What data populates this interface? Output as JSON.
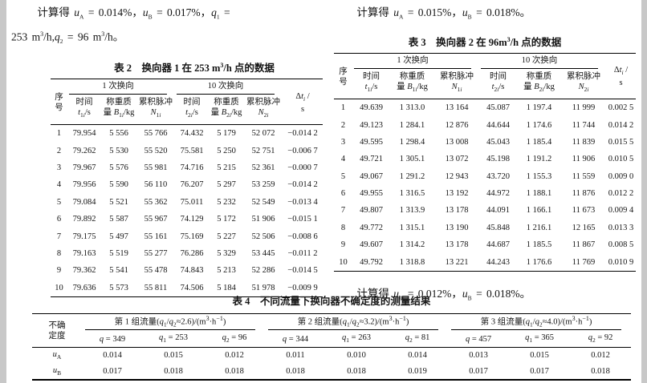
{
  "left_column": {
    "result_line1": "计算得 <i>u</i><sub>A</sub> = 0.014%，<i>u</i><sub>B</sub> = 0.017%，<i>q</i><sub>1</sub> =",
    "result_line2": "253 m<sup>3</sup>/h,<i>q</i><sub>2</sub> = 96 m<sup>3</sup>/h。"
  },
  "right_column": {
    "result_text_top": "计算得 <i>u</i><sub>A</sub> = 0.015%，<i>u</i><sub>B</sub> = 0.018%。",
    "result_text_bottom": "计算得 <i>u</i><sub>A</sub> = 0.012%，<i>u</i><sub>B</sub> = 0.018%。"
  },
  "commHeader": {
    "seq": "序<br>号",
    "group1": "1 次换向",
    "group2": "10 次换向",
    "time1": "时间<br><i>t</i><sub>1<i>i</i></sub>/s",
    "mass1": "称重质<br>量 <i>B</i><sub>1<i>i</i></sub>/kg",
    "pulse1": "累积脉冲<br><i>N</i><sub>1<i>i</i></sub>",
    "time2": "时间<br><i>t</i><sub>2<i>i</i></sub>/s",
    "mass2": "称重质<br>量 <i>B</i><sub>2<i>i</i></sub>/kg",
    "pulse2": "累积脉冲<br><i>N</i><sub>2<i>i</i></sub>",
    "dt": "Δ<i>t</i><sub><i>i</i></sub> /<br>s"
  },
  "table2": {
    "title": "表 2　换向器 1 在 253 m<sup>3</sup>/h 点的数据",
    "rows": [
      [
        "1",
        "79.954",
        "5 556",
        "55 766",
        "74.432",
        "5 179",
        "52 072",
        "−0.014 2"
      ],
      [
        "2",
        "79.262",
        "5 530",
        "55 520",
        "75.581",
        "5 250",
        "52 751",
        "−0.006 7"
      ],
      [
        "3",
        "79.967",
        "5 576",
        "55 981",
        "74.716",
        "5 215",
        "52 361",
        "−0.000 7"
      ],
      [
        "4",
        "79.956",
        "5 590",
        "56 110",
        "76.207",
        "5 297",
        "53 259",
        "−0.014 2"
      ],
      [
        "5",
        "79.084",
        "5 521",
        "55 362",
        "75.011",
        "5 232",
        "52 549",
        "−0.013 4"
      ],
      [
        "6",
        "79.892",
        "5 587",
        "55 967",
        "74.129",
        "5 172",
        "51 906",
        "−0.015 1"
      ],
      [
        "7",
        "79.175",
        "5 497",
        "55 161",
        "75.169",
        "5 227",
        "52 506",
        "−0.008 6"
      ],
      [
        "8",
        "79.163",
        "5 519",
        "55 277",
        "76.286",
        "5 329",
        "53 445",
        "−0.011 2"
      ],
      [
        "9",
        "79.362",
        "5 541",
        "55 478",
        "74.843",
        "5 213",
        "52 286",
        "−0.014 5"
      ],
      [
        "10",
        "79.636",
        "5 573",
        "55 811",
        "74.506",
        "5 184",
        "51 978",
        "−0.009 9"
      ]
    ]
  },
  "table3": {
    "title": "表 3　换向器 2 在 96m<sup>3</sup>/h 点的数据",
    "rows": [
      [
        "1",
        "49.639",
        "1 313.0",
        "13 164",
        "45.087",
        "1 197.4",
        "11 999",
        "0.002 5"
      ],
      [
        "2",
        "49.123",
        "1 284.1",
        "12 876",
        "44.644",
        "1 174.6",
        "11 744",
        "0.014 2"
      ],
      [
        "3",
        "49.595",
        "1 298.4",
        "13 008",
        "45.043",
        "1 185.4",
        "11 839",
        "0.015 5"
      ],
      [
        "4",
        "49.721",
        "1 305.1",
        "13 072",
        "45.198",
        "1 191.2",
        "11 906",
        "0.010 5"
      ],
      [
        "5",
        "49.067",
        "1 291.2",
        "12 943",
        "43.720",
        "1 155.3",
        "11 559",
        "0.009 0"
      ],
      [
        "6",
        "49.955",
        "1 316.5",
        "13 192",
        "44.972",
        "1 188.1",
        "11 876",
        "0.012 2"
      ],
      [
        "7",
        "49.807",
        "1 313.9",
        "13 178",
        "44.091",
        "1 166.1",
        "11 673",
        "0.009 4"
      ],
      [
        "8",
        "49.772",
        "1 315.1",
        "13 190",
        "45.848",
        "1 216.1",
        "12 165",
        "0.013 3"
      ],
      [
        "9",
        "49.607",
        "1 314.2",
        "13 178",
        "44.687",
        "1 185.5",
        "11 867",
        "0.008 5"
      ],
      [
        "10",
        "49.792",
        "1 318.8",
        "13 221",
        "44.243",
        "1 176.6",
        "11 769",
        "0.010 9"
      ]
    ]
  },
  "table4": {
    "title": "表 4　不同流量下换向器不确定度的测量结果",
    "row_header": "不确<br>定度",
    "groups": [
      {
        "label": "第 1 组流量(<i>q</i><sub>1</sub>/<i>q</i><sub>2</sub>≈2.6)/(m<sup>3</sup>·h<sup>−1</sup>)",
        "subcols": [
          "<i>q</i> = 349",
          "<i>q</i><sub>1</sub> = 253",
          "<i>q</i><sub>2</sub> = 96"
        ]
      },
      {
        "label": "第 2 组流量(<i>q</i><sub>1</sub>/<i>q</i><sub>2</sub>≈3.2)/(m<sup>3</sup>·h<sup>−1</sup>)",
        "subcols": [
          "<i>q</i> = 344",
          "<i>q</i><sub>1</sub> = 263",
          "<i>q</i><sub>2</sub> = 81"
        ]
      },
      {
        "label": "第 3 组流量(<i>q</i><sub>1</sub>/<i>q</i><sub>2</sub>≈4.0)/(m<sup>3</sup>·h<sup>−1</sup>)",
        "subcols": [
          "<i>q</i> = 457",
          "<i>q</i><sub>1</sub> = 365",
          "<i>q</i><sub>2</sub> = 92"
        ]
      }
    ],
    "rows": [
      {
        "label": "<i>u</i><sub>A</sub>",
        "values": [
          "0.014",
          "0.015",
          "0.012",
          "0.011",
          "0.010",
          "0.014",
          "0.013",
          "0.015",
          "0.012"
        ]
      },
      {
        "label": "<i>u</i><sub>B</sub>",
        "values": [
          "0.017",
          "0.018",
          "0.018",
          "0.018",
          "0.018",
          "0.019",
          "0.017",
          "0.017",
          "0.018"
        ]
      }
    ]
  }
}
